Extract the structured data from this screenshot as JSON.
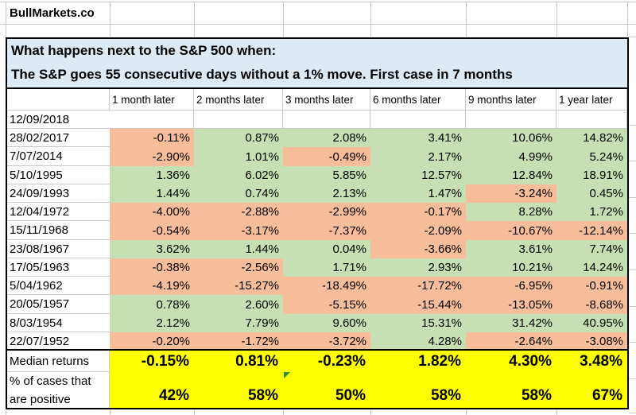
{
  "brand": "BullMarkets.co",
  "title_line1": "What happens next to the S&P 500 when:",
  "title_line2": "The S&P goes 55 consecutive days without a 1% move. First case in 7 months",
  "columns": [
    "1 month later",
    "2 months later",
    "3 months later",
    "6 months later",
    "9 months later",
    "1 year later"
  ],
  "rows": [
    {
      "date": "12/09/2018",
      "values": [
        "",
        "",
        "",
        "",
        "",
        ""
      ]
    },
    {
      "date": "28/02/2017",
      "values": [
        "-0.11%",
        "0.87%",
        "2.08%",
        "3.41%",
        "10.06%",
        "14.82%"
      ]
    },
    {
      "date": "7/07/2014",
      "values": [
        "-2.90%",
        "1.01%",
        "-0.49%",
        "2.17%",
        "4.99%",
        "5.24%"
      ]
    },
    {
      "date": "5/10/1995",
      "values": [
        "1.36%",
        "6.02%",
        "5.85%",
        "12.57%",
        "12.84%",
        "18.91%"
      ]
    },
    {
      "date": "24/09/1993",
      "values": [
        "1.44%",
        "0.74%",
        "2.13%",
        "1.47%",
        "-3.24%",
        "0.45%"
      ]
    },
    {
      "date": "12/04/1972",
      "values": [
        "-4.00%",
        "-2.88%",
        "-2.99%",
        "-0.17%",
        "8.28%",
        "1.72%"
      ]
    },
    {
      "date": "15/11/1968",
      "values": [
        "-0.54%",
        "-3.17%",
        "-7.37%",
        "-2.09%",
        "-10.67%",
        "-12.14%"
      ]
    },
    {
      "date": "23/08/1967",
      "values": [
        "3.62%",
        "1.44%",
        "0.04%",
        "-3.66%",
        "3.61%",
        "7.74%"
      ]
    },
    {
      "date": "17/05/1963",
      "values": [
        "-0.38%",
        "-2.56%",
        "1.71%",
        "2.93%",
        "10.21%",
        "14.24%"
      ]
    },
    {
      "date": "5/04/1962",
      "values": [
        "-4.19%",
        "-15.27%",
        "-18.49%",
        "-17.72%",
        "-6.95%",
        "-0.91%"
      ]
    },
    {
      "date": "20/05/1957",
      "values": [
        "0.78%",
        "2.60%",
        "-5.15%",
        "-15.44%",
        "-13.05%",
        "-8.68%"
      ]
    },
    {
      "date": "8/03/1954",
      "values": [
        "2.12%",
        "7.79%",
        "9.60%",
        "15.31%",
        "31.42%",
        "40.95%"
      ]
    },
    {
      "date": "22/07/1952",
      "values": [
        "-0.20%",
        "-1.72%",
        "-3.72%",
        "4.28%",
        "-2.64%",
        "-3.08%"
      ]
    }
  ],
  "summary": {
    "median_label": "Median returns",
    "median_values": [
      "-0.15%",
      "0.81%",
      "-0.23%",
      "1.82%",
      "4.30%",
      "3.48%"
    ],
    "positive_label_line1": "% of cases that",
    "positive_label_line2": "are positive",
    "positive_values": [
      "42%",
      "58%",
      "50%",
      "58%",
      "58%",
      "67%"
    ]
  },
  "colors": {
    "positive_cell": "#c6e0b4",
    "negative_cell": "#f8be9b",
    "summary_cell": "#ffff00",
    "title_bg": "#dbeaf5",
    "gridline": "#c9c9c9",
    "border": "#000000",
    "flash_fill_indicator": "#2e8b3a"
  }
}
